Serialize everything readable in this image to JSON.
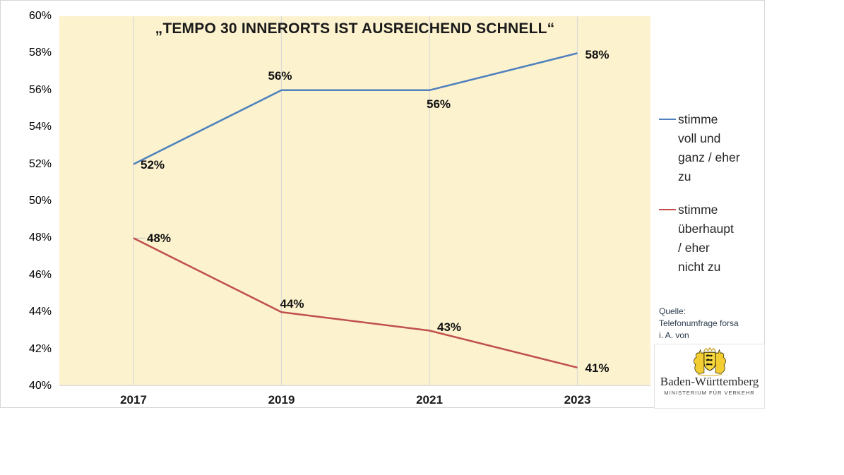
{
  "chart_data": {
    "type": "line",
    "title": "„TEMPO 30 INNERORTS IST AUSREICHEND SCHNELL“",
    "categories": [
      "2017",
      "2019",
      "2021",
      "2023"
    ],
    "series": [
      {
        "name": "stimme voll und ganz / eher zu",
        "color": "#4F81BD",
        "values": [
          52,
          56,
          56,
          58
        ],
        "point_labels": [
          "52%",
          "56%",
          "56%",
          "58%"
        ]
      },
      {
        "name": "stimme überhaupt / eher nicht zu",
        "color": "#C0504D",
        "values": [
          48,
          44,
          43,
          41
        ],
        "point_labels": [
          "48%",
          "44%",
          "43%",
          "41%"
        ]
      }
    ],
    "ylim": [
      40,
      60
    ],
    "ytick_step": 2,
    "yticks": [
      "60%",
      "58%",
      "56%",
      "54%",
      "52%",
      "50%",
      "48%",
      "46%",
      "44%",
      "42%",
      "40%"
    ],
    "xlabel": "",
    "ylabel": "",
    "grid": "vertical gridlines at each category only",
    "legend_position": "right",
    "plot_background": "#FCF2CE"
  },
  "legend": {
    "items": [
      {
        "color": "#4F81BD",
        "lines": [
          "stimme",
          "voll und",
          "ganz / eher",
          "zu"
        ]
      },
      {
        "color": "#C0504D",
        "lines": [
          "stimme",
          "überhaupt",
          "/ eher",
          "nicht zu"
        ]
      }
    ]
  },
  "source": {
    "lines": [
      "Quelle:",
      "Telefonumfrage forsa",
      "i. A. von"
    ]
  },
  "logo": {
    "icon": "baden-wuerttemberg-coat-of-arms",
    "region": "Baden-Württemberg",
    "subtitle": "MINISTERIUM FÜR VERKEHR"
  },
  "colors": {
    "grid": "#d9d9d9",
    "axis_line": "#d9d9d9",
    "leader_line": "#c9c9c9",
    "frame_border": "#d7d7d7"
  }
}
